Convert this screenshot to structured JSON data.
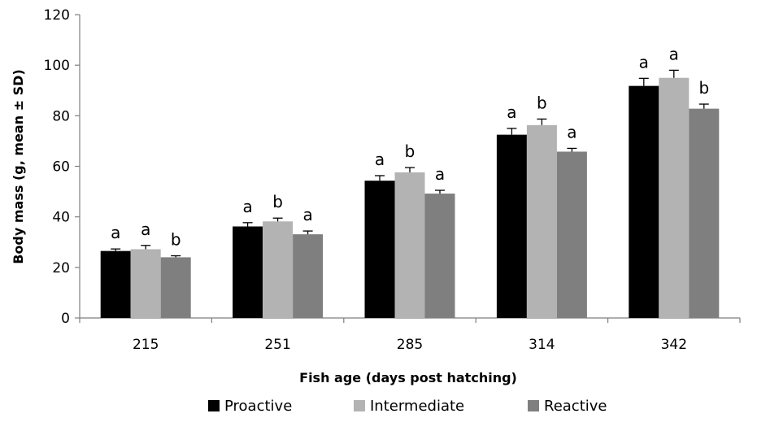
{
  "chart_data": {
    "type": "bar",
    "title": "",
    "xlabel": "Fish age (days post hatching)",
    "ylabel": "Body mass (g, mean ± SD)",
    "ylim": [
      0,
      120
    ],
    "yticks": [
      0,
      20,
      40,
      60,
      80,
      100,
      120
    ],
    "categories": [
      "215",
      "251",
      "285",
      "314",
      "342"
    ],
    "series": [
      {
        "name": "Proactive",
        "color": "#000000",
        "values": [
          26.5,
          36.2,
          54.3,
          72.5,
          91.8
        ],
        "sd": [
          0.8,
          1.5,
          2.0,
          2.5,
          3.0
        ],
        "letters": [
          "a",
          "a",
          "a",
          "a",
          "a"
        ]
      },
      {
        "name": "Intermediate",
        "color": "#b3b3b3",
        "values": [
          27.2,
          38.2,
          57.6,
          76.3,
          95.0
        ],
        "sd": [
          1.5,
          1.3,
          1.9,
          2.4,
          3.0
        ],
        "letters": [
          "a",
          "b",
          "b",
          "b",
          "a"
        ]
      },
      {
        "name": "Reactive",
        "color": "#7f7f7f",
        "values": [
          24.0,
          33.1,
          49.2,
          65.8,
          82.8
        ],
        "sd": [
          0.6,
          1.3,
          1.3,
          1.3,
          1.8
        ],
        "letters": [
          "b",
          "a",
          "a",
          "a",
          "b"
        ]
      }
    ],
    "grid": false,
    "legend_position": "bottom"
  }
}
